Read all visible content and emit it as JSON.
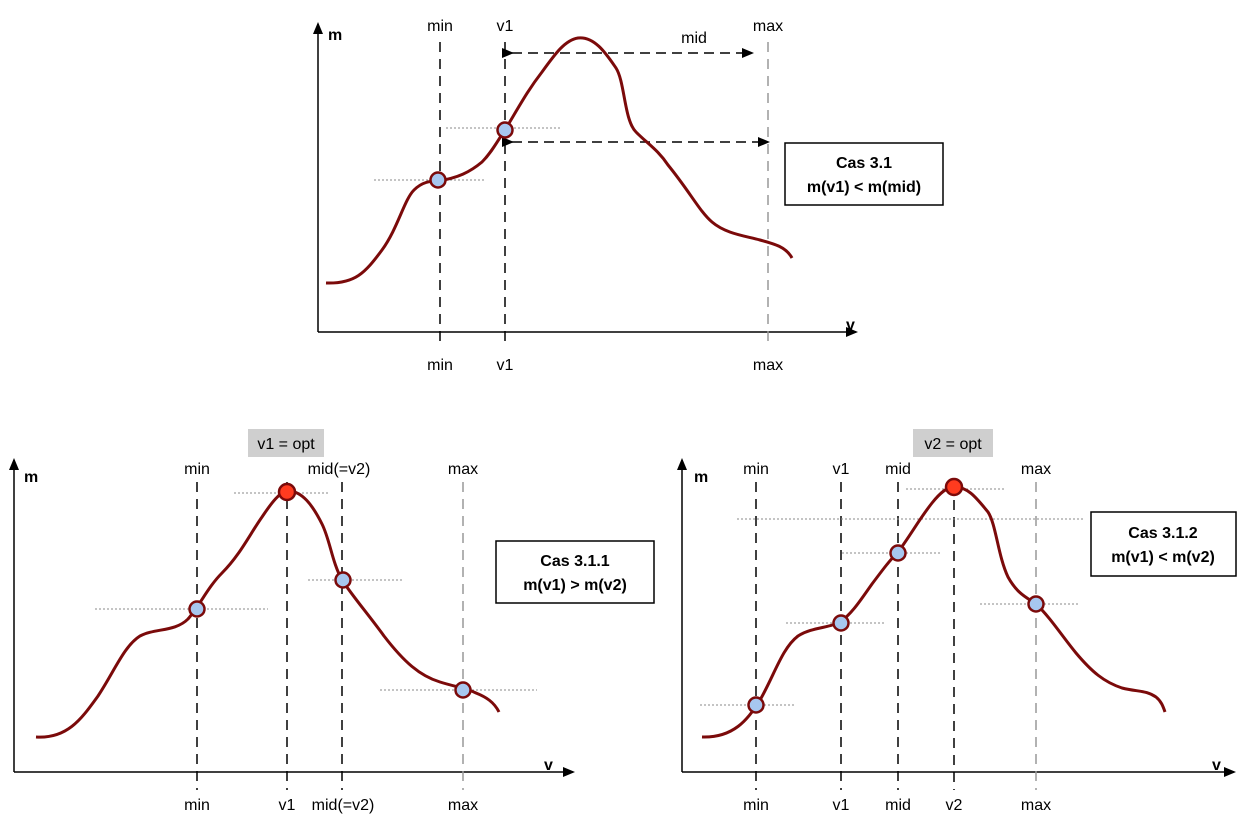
{
  "colors": {
    "curve": "#7b0a0a",
    "point_fill": "#a7c7ef",
    "point_stroke": "#7b0a0a",
    "optimum_fill": "#ff3b1f",
    "guide_dark": "#000000",
    "guide_light": "#999999",
    "level_line": "#888888",
    "badge_fill": "#cfcfcf",
    "box_border": "#000000"
  },
  "panels": {
    "top": {
      "y_axis_label": "m",
      "x_axis_label": "v",
      "guides": {
        "min_top": "min",
        "v1_top": "v1",
        "mid_top": "mid",
        "max_top": "max",
        "min_bottom": "min",
        "v1_bottom": "v1",
        "max_bottom": "max"
      },
      "case_box": {
        "title": "Cas 3.1",
        "condition": "m(v1) < m(mid)"
      }
    },
    "bottom_left": {
      "badge": "v1 = opt",
      "y_axis_label": "m",
      "x_axis_label": "v",
      "guides": {
        "min_top": "min",
        "mid_v2_top": "mid(=v2)",
        "max_top": "max",
        "min_bottom": "min",
        "v1_bottom": "v1",
        "mid_v2_bottom": "mid(=v2)",
        "max_bottom": "max"
      },
      "case_box": {
        "title": "Cas 3.1.1",
        "condition": "m(v1) > m(v2)"
      }
    },
    "bottom_right": {
      "badge": "v2 = opt",
      "y_axis_label": "m",
      "x_axis_label": "v",
      "guides": {
        "min_top": "min",
        "v1_top": "v1",
        "mid_top": "mid",
        "max_top": "max",
        "min_bottom": "min",
        "v1_bottom": "v1",
        "mid_bottom": "mid",
        "v2_bottom": "v2",
        "max_bottom": "max"
      },
      "case_box": {
        "title": "Cas 3.1.2",
        "condition": "m(v1) < m(v2)"
      }
    }
  }
}
